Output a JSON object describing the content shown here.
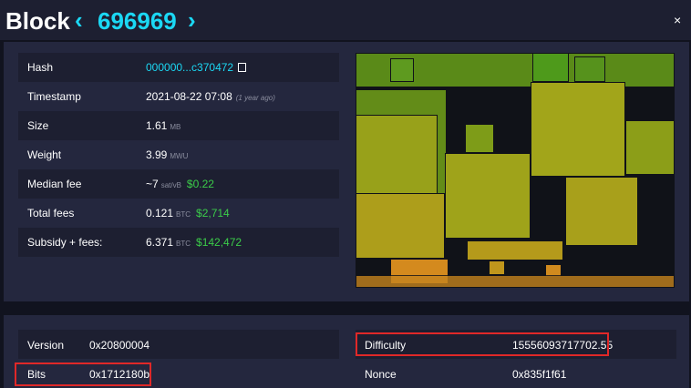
{
  "header": {
    "title": "Block",
    "height": "696969",
    "prev": "‹",
    "next": "›",
    "close": "×"
  },
  "details": {
    "hash_label": "Hash",
    "hash_value": "000000...c370472",
    "timestamp_label": "Timestamp",
    "timestamp_value": "2021-08-22 07:08",
    "timestamp_ago": "(1 year ago)",
    "size_label": "Size",
    "size_value": "1.61",
    "size_unit": "MB",
    "weight_label": "Weight",
    "weight_value": "3.99",
    "weight_unit": "MWU",
    "median_fee_label": "Median fee",
    "median_fee_value": "~7",
    "median_fee_unit": "sat/vB",
    "median_fee_usd": "$0.22",
    "total_fees_label": "Total fees",
    "total_fees_value": "0.121",
    "total_fees_unit": "BTC",
    "total_fees_usd": "$2,714",
    "subsidy_label": "Subsidy + fees:",
    "subsidy_value": "6.371",
    "subsidy_unit": "BTC",
    "subsidy_usd": "$142,472"
  },
  "extra": {
    "version_label": "Version",
    "version_value": "0x20800004",
    "bits_label": "Bits",
    "bits_value": "0x1712180b",
    "difficulty_label": "Difficulty",
    "difficulty_value": "15556093717702.55",
    "nonce_label": "Nonce",
    "nonce_value": "0x835f1f61"
  },
  "colors": {
    "accent": "#1bd8f4",
    "green": "#3bcc49",
    "highlight": "#e02828"
  }
}
